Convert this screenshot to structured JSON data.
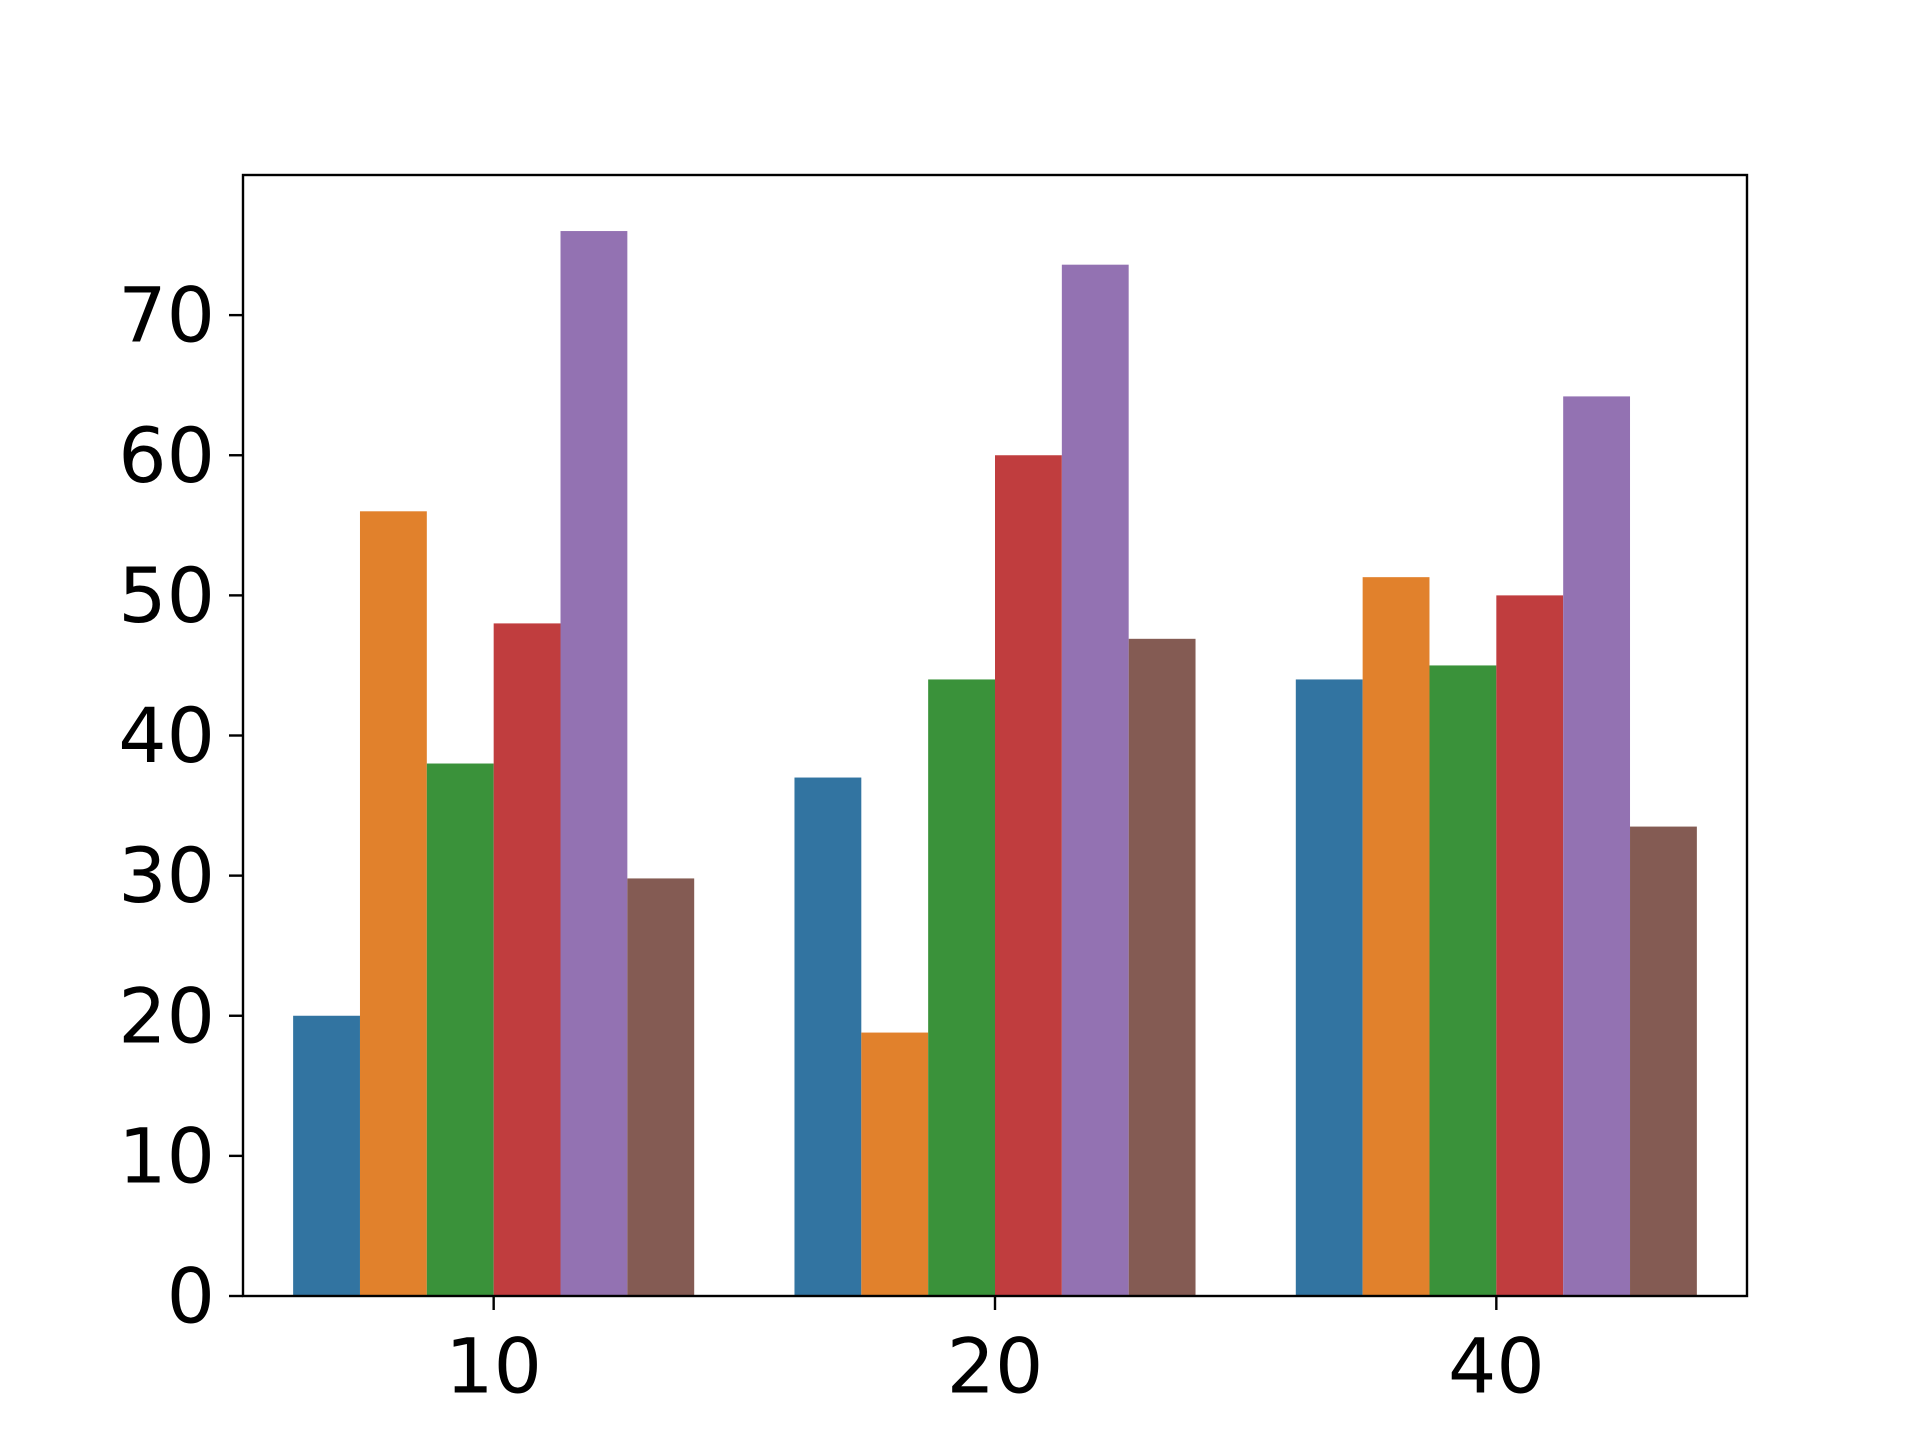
{
  "chart_data": {
    "type": "bar",
    "categories": [
      "10",
      "20",
      "40"
    ],
    "series": [
      {
        "values": [
          20.0,
          37.0,
          44.0
        ],
        "color": "#3274a1"
      },
      {
        "values": [
          56.0,
          18.8,
          51.3
        ],
        "color": "#e1812c"
      },
      {
        "values": [
          38.0,
          44.0,
          45.0
        ],
        "color": "#3a923a"
      },
      {
        "values": [
          48.0,
          60.0,
          50.0
        ],
        "color": "#c03d3e"
      },
      {
        "values": [
          76.0,
          73.6,
          64.2
        ],
        "color": "#9372b2"
      },
      {
        "values": [
          29.8,
          46.9,
          33.5
        ],
        "color": "#845b53"
      }
    ],
    "yticks": [
      "0",
      "10",
      "20",
      "30",
      "40",
      "50",
      "60",
      "70"
    ],
    "ylim": [
      0,
      80
    ],
    "grid": false,
    "title": "",
    "xlabel": "",
    "ylabel": ""
  }
}
